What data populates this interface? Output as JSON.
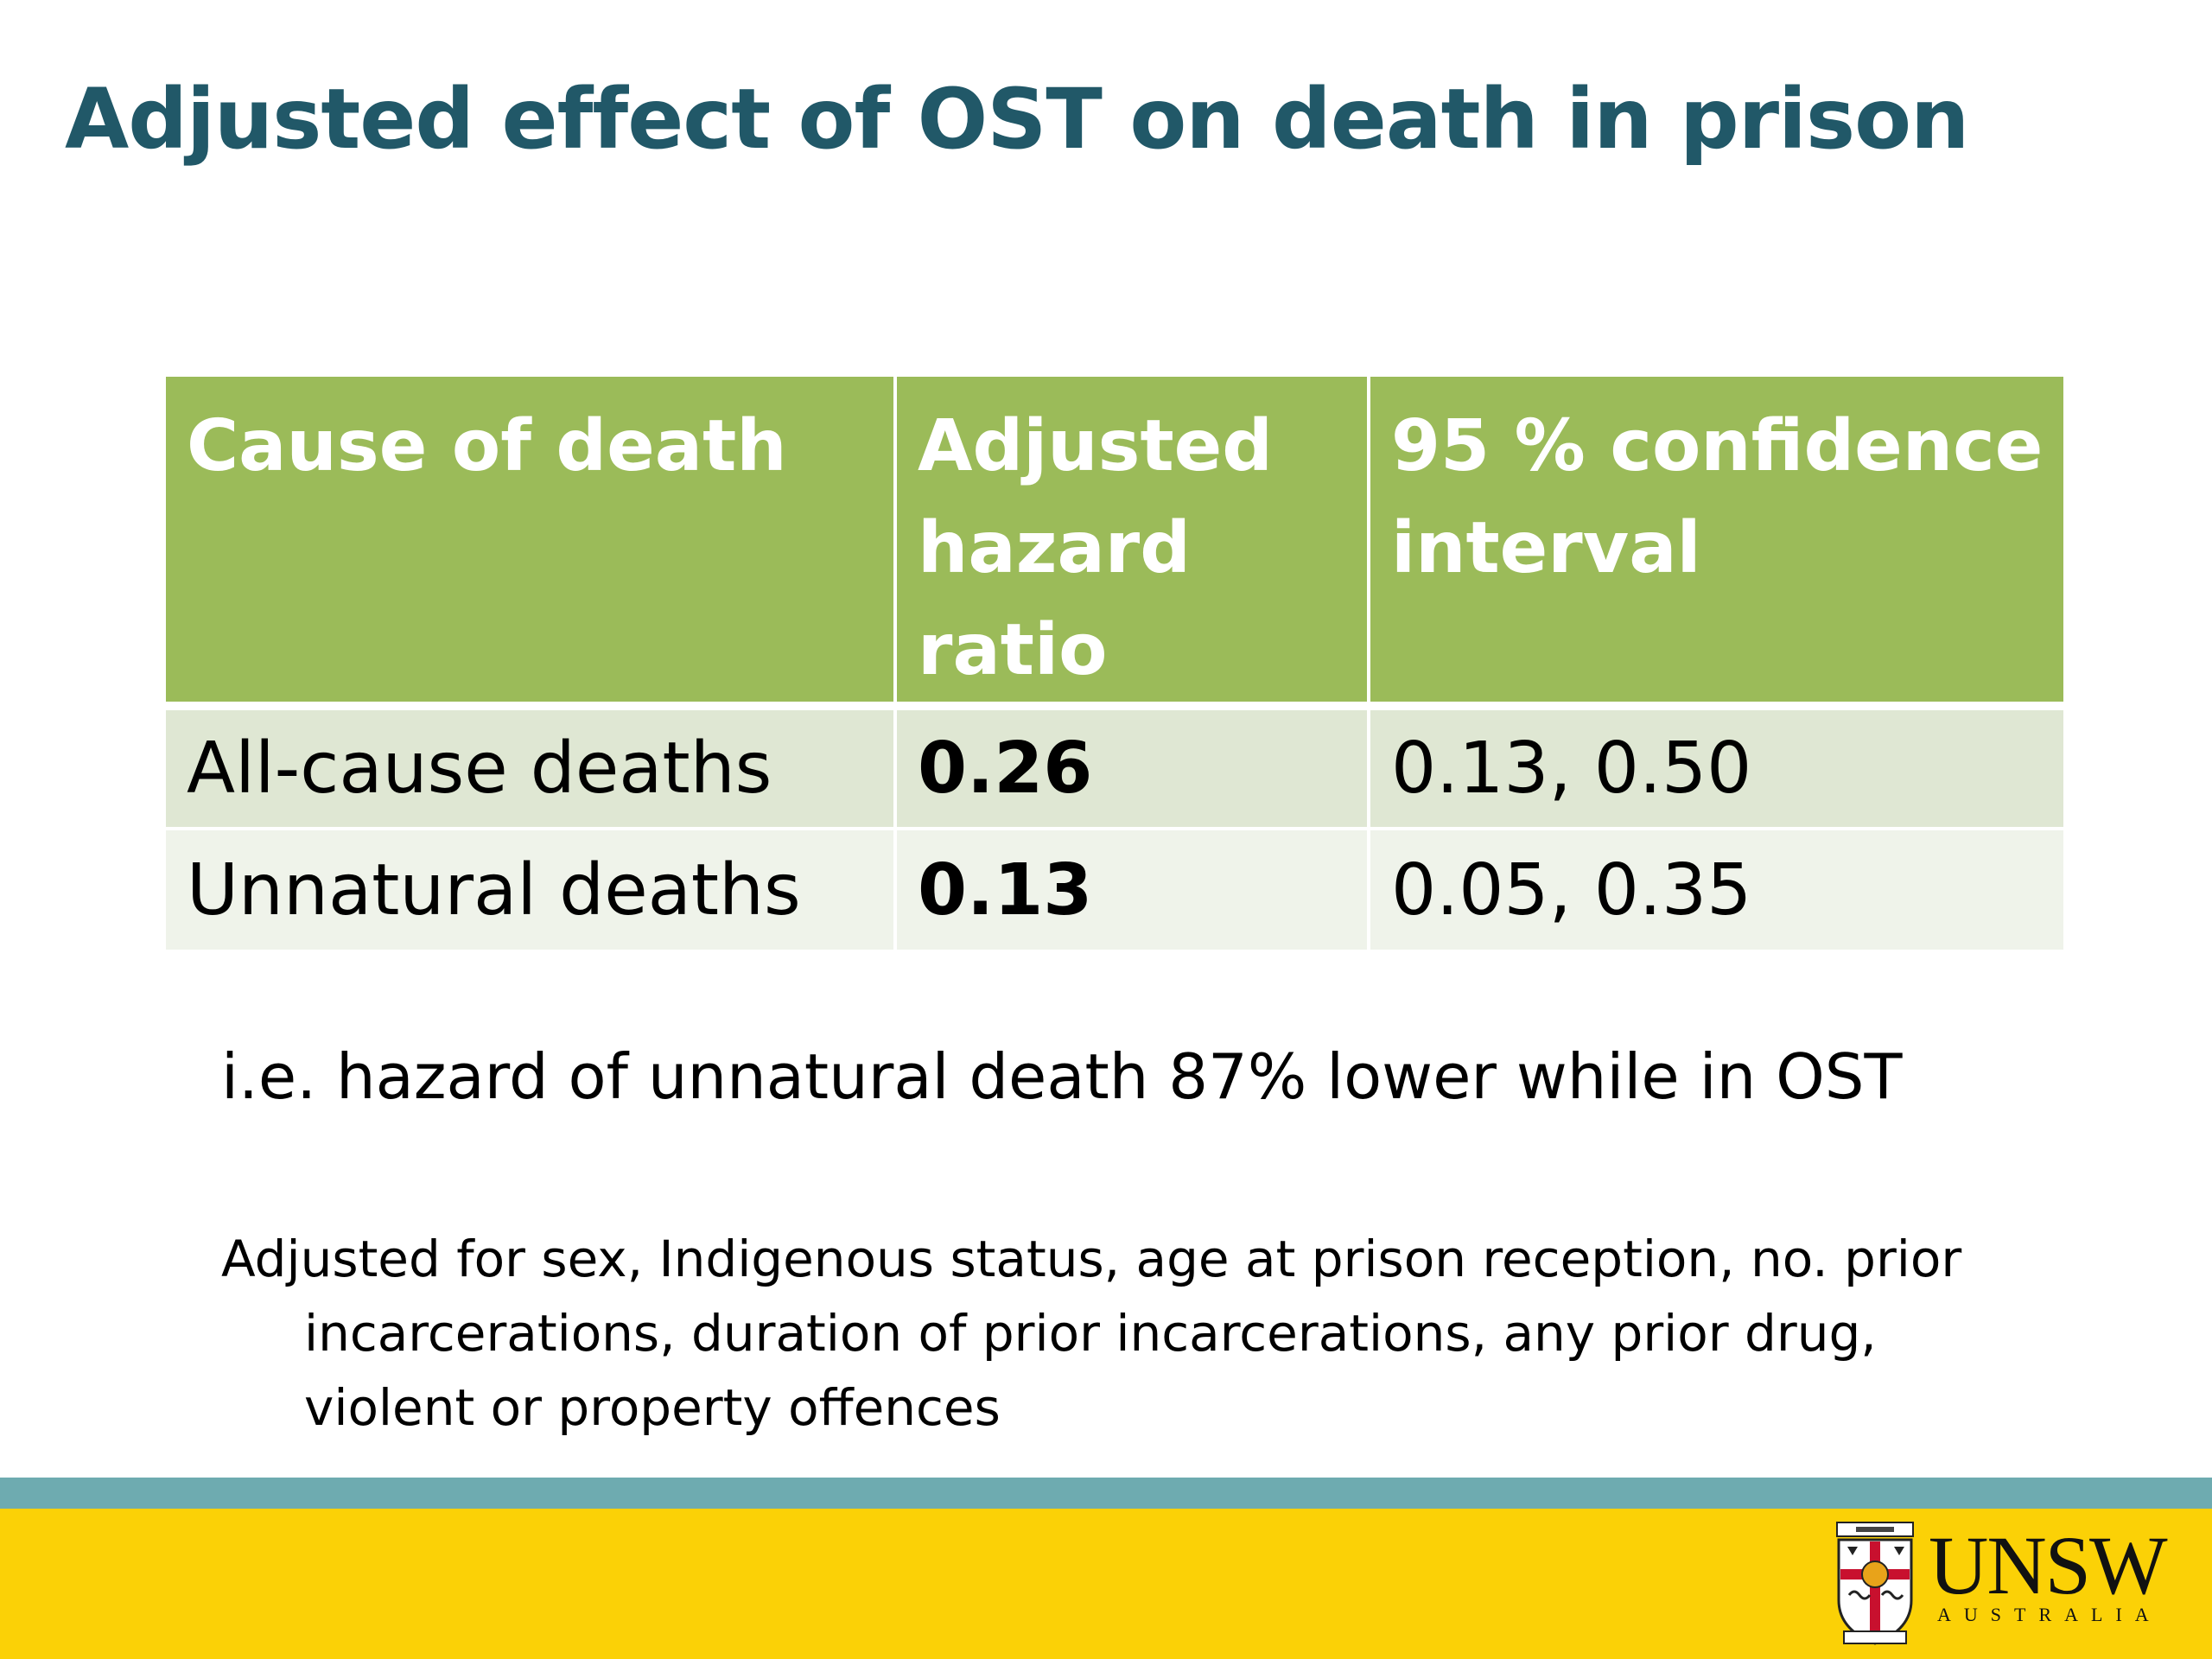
{
  "slide": {
    "title": "Adjusted effect of OST on death in prison"
  },
  "table": {
    "headers": [
      [
        "Cause of death"
      ],
      [
        "Adjusted",
        "hazard ratio"
      ],
      [
        "95 % confidence",
        "interval"
      ]
    ],
    "rows": [
      {
        "cause": "All-cause deaths",
        "hazard_ratio": "0.26",
        "ci": "0.13, 0.50"
      },
      {
        "cause": "Unnatural deaths",
        "hazard_ratio": "0.13",
        "ci": "0.05, 0.35"
      }
    ]
  },
  "note": "i.e. hazard of unnatural death 87% lower while in OST",
  "adjusted_for": {
    "line1": "Adjusted for sex, Indigenous status, age at prison reception, no. prior",
    "line2": "incarcerations, duration of prior incarcerations, any prior drug,",
    "line3": "violent or property offences"
  },
  "logo": {
    "wordmark": "UNSW",
    "subtitle": "AUSTRALIA"
  },
  "colors": {
    "title": "#215868",
    "header_bg": "#9bbb59",
    "row_odd_bg": "#dfe7d3",
    "row_even_bg": "#eff3ea",
    "stripe": "#6eabb0",
    "footer": "#fbd106"
  }
}
